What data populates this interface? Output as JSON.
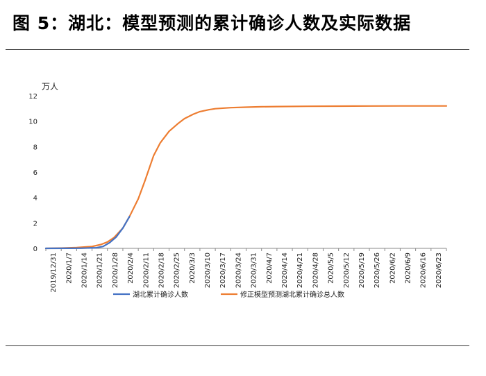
{
  "title": "图 5：湖北：模型预测的累计确诊人数及实际数据",
  "colors": {
    "actual": "#4472C4",
    "model": "#ED7D31",
    "axis": "#888888",
    "text": "#222222"
  },
  "chart_data": {
    "type": "line",
    "ylabel": "万人",
    "ylim": [
      0,
      12
    ],
    "yticks": [
      0,
      2,
      4,
      6,
      8,
      10,
      12
    ],
    "xlim": [
      "2019-12-31",
      "2020-06-30"
    ],
    "x_tick_labels": [
      "2019/12/31",
      "2020/1/7",
      "2020/1/14",
      "2020/1/21",
      "2020/1/28",
      "2020/2/4",
      "2020/2/11",
      "2020/2/18",
      "2020/2/25",
      "2020/3/3",
      "2020/3/10",
      "2020/3/17",
      "2020/3/24",
      "2020/3/31",
      "2020/4/7",
      "2020/4/14",
      "2020/4/21",
      "2020/4/28",
      "2020/5/5",
      "2020/5/12",
      "2020/5/19",
      "2020/5/26",
      "2020/6/2",
      "2020/6/9",
      "2020/6/16",
      "2020/6/23"
    ],
    "series": [
      {
        "name": "湖北累计确诊人数",
        "color": "#4472C4",
        "x": [
          "2019-12-31",
          "2020-01-10",
          "2020-01-16",
          "2020-01-20",
          "2020-01-23",
          "2020-01-26",
          "2020-01-29",
          "2020-02-01",
          "2020-02-04",
          "2020-02-07"
        ],
        "values": [
          0,
          0.004,
          0.01,
          0.03,
          0.05,
          0.15,
          0.45,
          0.9,
          1.6,
          2.5
        ]
      },
      {
        "name": "修正模型预测湖北累计确诊总人数",
        "color": "#ED7D31",
        "x": [
          "2019-12-31",
          "2020-01-07",
          "2020-01-14",
          "2020-01-21",
          "2020-01-25",
          "2020-01-28",
          "2020-01-31",
          "2020-02-04",
          "2020-02-07",
          "2020-02-11",
          "2020-02-14",
          "2020-02-18",
          "2020-02-21",
          "2020-02-25",
          "2020-02-29",
          "2020-03-03",
          "2020-03-07",
          "2020-03-10",
          "2020-03-14",
          "2020-03-17",
          "2020-03-21",
          "2020-03-24",
          "2020-03-31",
          "2020-04-07",
          "2020-04-14",
          "2020-04-28",
          "2020-05-12",
          "2020-05-26",
          "2020-06-09",
          "2020-06-23",
          "2020-06-30"
        ],
        "values": [
          0,
          0.02,
          0.06,
          0.15,
          0.3,
          0.5,
          0.85,
          1.6,
          2.5,
          3.9,
          5.3,
          7.3,
          8.3,
          9.2,
          9.8,
          10.2,
          10.55,
          10.75,
          10.9,
          10.98,
          11.03,
          11.06,
          11.1,
          11.13,
          11.15,
          11.17,
          11.18,
          11.19,
          11.2,
          11.2,
          11.2
        ]
      }
    ],
    "legend_position": "bottom",
    "grid": false
  }
}
